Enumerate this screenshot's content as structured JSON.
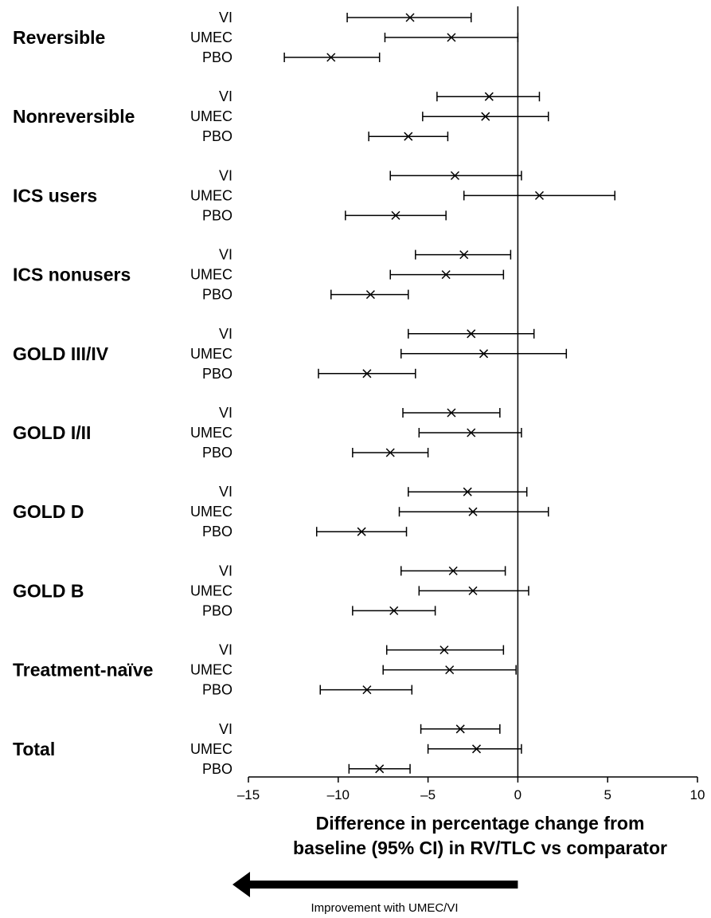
{
  "chart_data": {
    "type": "forest",
    "xlabel_lines": [
      "Difference in percentage change from",
      "baseline (95% CI) in RV/TLC vs comparator"
    ],
    "xlim": [
      -15,
      10
    ],
    "xticks": [
      -15,
      -10,
      -5,
      0,
      5,
      10
    ],
    "xtick_labels": [
      "–15",
      "–10",
      "–5",
      "0",
      "5",
      "10"
    ],
    "reference_line": 0,
    "arrow": {
      "direction": "left",
      "from": 0,
      "to": -15,
      "label": "Improvement with UMEC/VI"
    },
    "groups": [
      {
        "name": "Reversible",
        "rows": [
          {
            "comparator": "VI",
            "estimate": -6.0,
            "lower": -9.5,
            "upper": -2.6
          },
          {
            "comparator": "UMEC",
            "estimate": -3.7,
            "lower": -7.4,
            "upper": 0.0
          },
          {
            "comparator": "PBO",
            "estimate": -10.4,
            "lower": -13.0,
            "upper": -7.7
          }
        ]
      },
      {
        "name": "Nonreversible",
        "rows": [
          {
            "comparator": "VI",
            "estimate": -1.6,
            "lower": -4.5,
            "upper": 1.2
          },
          {
            "comparator": "UMEC",
            "estimate": -1.8,
            "lower": -5.3,
            "upper": 1.7
          },
          {
            "comparator": "PBO",
            "estimate": -6.1,
            "lower": -8.3,
            "upper": -3.9
          }
        ]
      },
      {
        "name": "ICS users",
        "rows": [
          {
            "comparator": "VI",
            "estimate": -3.5,
            "lower": -7.1,
            "upper": 0.2
          },
          {
            "comparator": "UMEC",
            "estimate": 1.2,
            "lower": -3.0,
            "upper": 5.4
          },
          {
            "comparator": "PBO",
            "estimate": -6.8,
            "lower": -9.6,
            "upper": -4.0
          }
        ]
      },
      {
        "name": "ICS nonusers",
        "rows": [
          {
            "comparator": "VI",
            "estimate": -3.0,
            "lower": -5.7,
            "upper": -0.4
          },
          {
            "comparator": "UMEC",
            "estimate": -4.0,
            "lower": -7.1,
            "upper": -0.8
          },
          {
            "comparator": "PBO",
            "estimate": -8.2,
            "lower": -10.4,
            "upper": -6.1
          }
        ]
      },
      {
        "name": "GOLD III/IV",
        "rows": [
          {
            "comparator": "VI",
            "estimate": -2.6,
            "lower": -6.1,
            "upper": 0.9
          },
          {
            "comparator": "UMEC",
            "estimate": -1.9,
            "lower": -6.5,
            "upper": 2.7
          },
          {
            "comparator": "PBO",
            "estimate": -8.4,
            "lower": -11.1,
            "upper": -5.7
          }
        ]
      },
      {
        "name": "GOLD I/II",
        "rows": [
          {
            "comparator": "VI",
            "estimate": -3.7,
            "lower": -6.4,
            "upper": -1.0
          },
          {
            "comparator": "UMEC",
            "estimate": -2.6,
            "lower": -5.5,
            "upper": 0.2
          },
          {
            "comparator": "PBO",
            "estimate": -7.1,
            "lower": -9.2,
            "upper": -5.0
          }
        ]
      },
      {
        "name": "GOLD D",
        "rows": [
          {
            "comparator": "VI",
            "estimate": -2.8,
            "lower": -6.1,
            "upper": 0.5
          },
          {
            "comparator": "UMEC",
            "estimate": -2.5,
            "lower": -6.6,
            "upper": 1.7
          },
          {
            "comparator": "PBO",
            "estimate": -8.7,
            "lower": -11.2,
            "upper": -6.2
          }
        ]
      },
      {
        "name": "GOLD B",
        "rows": [
          {
            "comparator": "VI",
            "estimate": -3.6,
            "lower": -6.5,
            "upper": -0.7
          },
          {
            "comparator": "UMEC",
            "estimate": -2.5,
            "lower": -5.5,
            "upper": 0.6
          },
          {
            "comparator": "PBO",
            "estimate": -6.9,
            "lower": -9.2,
            "upper": -4.6
          }
        ]
      },
      {
        "name": "Treatment-naïve",
        "rows": [
          {
            "comparator": "VI",
            "estimate": -4.1,
            "lower": -7.3,
            "upper": -0.8
          },
          {
            "comparator": "UMEC",
            "estimate": -3.8,
            "lower": -7.5,
            "upper": -0.1
          },
          {
            "comparator": "PBO",
            "estimate": -8.4,
            "lower": -11.0,
            "upper": -5.9
          }
        ]
      },
      {
        "name": "Total",
        "rows": [
          {
            "comparator": "VI",
            "estimate": -3.2,
            "lower": -5.4,
            "upper": -1.0
          },
          {
            "comparator": "UMEC",
            "estimate": -2.3,
            "lower": -5.0,
            "upper": 0.2
          },
          {
            "comparator": "PBO",
            "estimate": -7.7,
            "lower": -9.4,
            "upper": -6.0
          }
        ]
      }
    ]
  }
}
